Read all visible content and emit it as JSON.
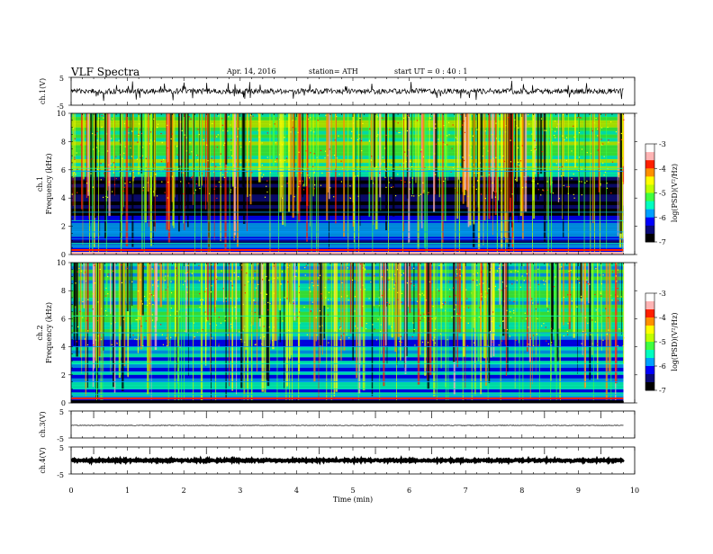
{
  "header": {
    "title": "VLF  Spectra",
    "date": "Apr. 14,  2016",
    "station": "station= ATH",
    "start": "start  UT =   0 : 40 : 1"
  },
  "chart_data": {
    "type": "heatmap",
    "x_axis": {
      "label": "Time  (min)",
      "ticks": [
        "0",
        "1",
        "2",
        "3",
        "4",
        "5",
        "6",
        "7",
        "8",
        "9",
        "10"
      ],
      "xlim": [
        0,
        10
      ],
      "data_end_min": 9.8
    },
    "ch1_waveform": {
      "ylabel": "ch.1(V)",
      "ticks": [
        "5",
        "-5"
      ],
      "ylim": [
        -5,
        5
      ]
    },
    "ch1_spectrogram": {
      "ylabel_channel": "ch.1",
      "ylabel": "Frequency  (kHz)",
      "yticks": [
        "0",
        "2",
        "4",
        "6",
        "8",
        "10"
      ],
      "ylim": [
        0,
        10
      ]
    },
    "ch2_spectrogram": {
      "ylabel_channel": "ch.2",
      "ylabel": "Frequency  (kHz)",
      "yticks": [
        "0",
        "2",
        "4",
        "6",
        "8",
        "10"
      ],
      "ylim": [
        0,
        10
      ]
    },
    "ch3_waveform": {
      "ylabel": "ch.3(V)",
      "ticks": [
        "5",
        "-5"
      ],
      "ylim": [
        -5,
        5
      ]
    },
    "ch4_waveform": {
      "ylabel": "ch.4(V)",
      "ticks": [
        "5",
        "-5"
      ],
      "ylim": [
        -5,
        5
      ]
    },
    "colorbar": {
      "label": "log(PSD)(V²/Hz)",
      "ticks": [
        "-3",
        "-4",
        "-5",
        "-6",
        "-7"
      ],
      "range": [
        -7,
        -3
      ],
      "colors": [
        "#000000",
        "#0a0a78",
        "#0000ff",
        "#00a0ff",
        "#00ffc0",
        "#40ff40",
        "#c0ff00",
        "#ffff00",
        "#ff9000",
        "#ff2000",
        "#ffb4b4",
        "#ffffff"
      ]
    }
  }
}
